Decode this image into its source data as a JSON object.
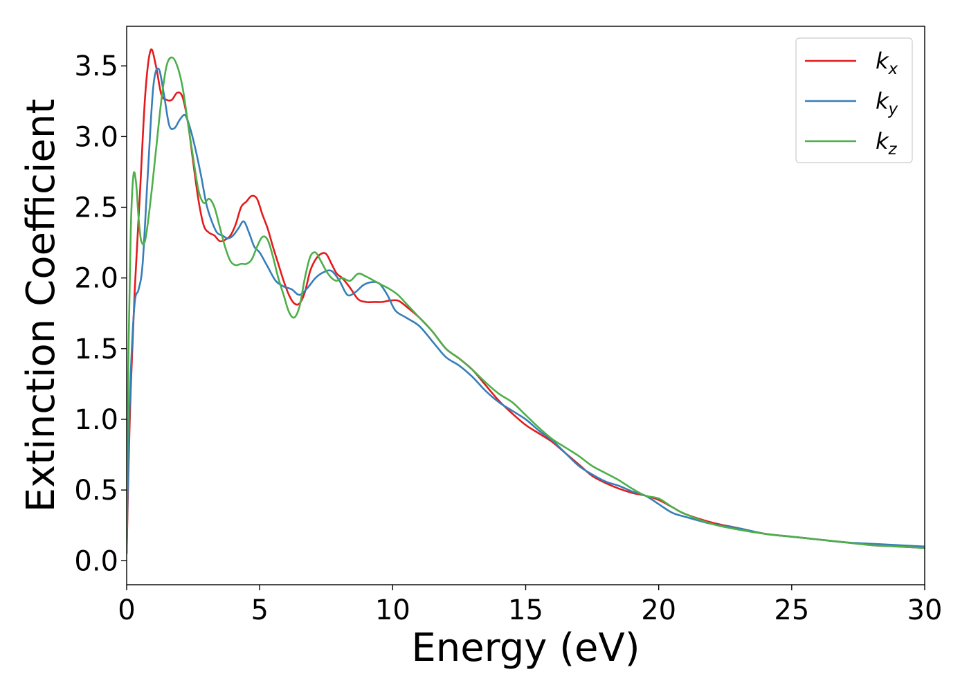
{
  "chart_data": {
    "type": "line",
    "title": "",
    "xlabel": "Energy (eV)",
    "ylabel": "Extinction Coefficient",
    "xlim": [
      0,
      30
    ],
    "ylim": [
      -0.17,
      3.78
    ],
    "xticks": [
      0,
      5,
      10,
      15,
      20,
      25,
      30
    ],
    "xtick_labels": [
      "0",
      "5",
      "10",
      "15",
      "20",
      "25",
      "30"
    ],
    "yticks": [
      0.0,
      0.5,
      1.0,
      1.5,
      2.0,
      2.5,
      3.0,
      3.5
    ],
    "ytick_labels": [
      "0.0",
      "0.5",
      "1.0",
      "1.5",
      "2.0",
      "2.5",
      "3.0",
      "3.5"
    ],
    "grid": false,
    "legend_position": "top-right",
    "series": [
      {
        "name": "k_x",
        "legend_base": "k",
        "legend_sub": "x",
        "color": "#e41a1c",
        "x": [
          0,
          0.05,
          0.15,
          0.3,
          0.5,
          0.7,
          0.9,
          1.1,
          1.3,
          1.5,
          1.7,
          1.9,
          2.1,
          2.3,
          2.5,
          2.7,
          2.9,
          3.1,
          3.3,
          3.5,
          3.7,
          3.9,
          4.1,
          4.3,
          4.5,
          4.7,
          4.9,
          5.1,
          5.3,
          5.5,
          5.7,
          5.9,
          6.1,
          6.3,
          6.5,
          6.7,
          6.9,
          7.1,
          7.3,
          7.5,
          7.7,
          7.9,
          8.1,
          8.4,
          8.7,
          9.0,
          9.3,
          9.6,
          9.9,
          10.2,
          10.5,
          11.0,
          11.5,
          12.0,
          12.5,
          13.0,
          13.5,
          14.0,
          14.5,
          15.0,
          15.5,
          16.0,
          16.5,
          17.0,
          17.5,
          18.0,
          18.5,
          19.0,
          19.5,
          20.0,
          20.5,
          21.0,
          22.0,
          23.0,
          24.0,
          25.0,
          26.0,
          27.0,
          28.0,
          29.0,
          30.0
        ],
        "y": [
          0.05,
          0.5,
          1.2,
          1.9,
          2.6,
          3.3,
          3.61,
          3.5,
          3.3,
          3.26,
          3.26,
          3.31,
          3.28,
          3.1,
          2.82,
          2.55,
          2.37,
          2.32,
          2.3,
          2.26,
          2.27,
          2.3,
          2.38,
          2.5,
          2.54,
          2.58,
          2.56,
          2.45,
          2.35,
          2.22,
          2.1,
          1.98,
          1.88,
          1.82,
          1.82,
          1.9,
          2.05,
          2.13,
          2.17,
          2.17,
          2.1,
          2.03,
          2.0,
          1.93,
          1.85,
          1.83,
          1.83,
          1.83,
          1.84,
          1.84,
          1.8,
          1.72,
          1.62,
          1.5,
          1.43,
          1.35,
          1.24,
          1.13,
          1.04,
          0.96,
          0.9,
          0.84,
          0.76,
          0.68,
          0.6,
          0.55,
          0.51,
          0.48,
          0.46,
          0.43,
          0.38,
          0.33,
          0.27,
          0.23,
          0.19,
          0.17,
          0.15,
          0.13,
          0.11,
          0.1,
          0.09
        ]
      },
      {
        "name": "k_y",
        "legend_base": "k",
        "legend_sub": "y",
        "color": "#377eb8",
        "x": [
          0,
          0.05,
          0.15,
          0.3,
          0.45,
          0.6,
          0.8,
          1.0,
          1.2,
          1.4,
          1.6,
          1.8,
          2.0,
          2.2,
          2.4,
          2.6,
          2.8,
          3.0,
          3.2,
          3.4,
          3.6,
          3.8,
          4.0,
          4.2,
          4.4,
          4.6,
          4.8,
          5.0,
          5.3,
          5.6,
          5.9,
          6.2,
          6.5,
          6.8,
          7.1,
          7.4,
          7.7,
          8.0,
          8.3,
          8.6,
          8.9,
          9.2,
          9.5,
          9.8,
          10.1,
          10.5,
          11.0,
          11.5,
          12.0,
          12.5,
          13.0,
          13.5,
          14.0,
          14.5,
          15.0,
          15.5,
          16.0,
          16.5,
          17.0,
          17.5,
          18.0,
          18.5,
          19.0,
          19.5,
          20.0,
          20.5,
          21.0,
          22.0,
          23.0,
          24.0,
          25.0,
          26.0,
          27.0,
          28.0,
          29.0,
          30.0
        ],
        "y": [
          0.05,
          0.6,
          1.3,
          1.82,
          1.92,
          2.1,
          2.75,
          3.35,
          3.48,
          3.3,
          3.08,
          3.06,
          3.12,
          3.15,
          3.05,
          2.9,
          2.72,
          2.52,
          2.4,
          2.32,
          2.3,
          2.28,
          2.3,
          2.35,
          2.4,
          2.32,
          2.22,
          2.18,
          2.08,
          1.98,
          1.94,
          1.92,
          1.88,
          1.93,
          2.0,
          2.04,
          2.05,
          1.98,
          1.88,
          1.9,
          1.95,
          1.97,
          1.96,
          1.88,
          1.77,
          1.72,
          1.66,
          1.55,
          1.44,
          1.38,
          1.3,
          1.2,
          1.12,
          1.06,
          1.0,
          0.92,
          0.85,
          0.76,
          0.67,
          0.61,
          0.56,
          0.53,
          0.49,
          0.46,
          0.4,
          0.34,
          0.31,
          0.26,
          0.23,
          0.19,
          0.17,
          0.15,
          0.13,
          0.12,
          0.11,
          0.1
        ]
      },
      {
        "name": "k_z",
        "legend_base": "k",
        "legend_sub": "z",
        "color": "#4daf4a",
        "x": [
          0,
          0.05,
          0.15,
          0.25,
          0.35,
          0.45,
          0.55,
          0.7,
          0.9,
          1.1,
          1.3,
          1.5,
          1.7,
          1.9,
          2.1,
          2.3,
          2.5,
          2.7,
          2.9,
          3.1,
          3.3,
          3.5,
          3.7,
          3.9,
          4.1,
          4.3,
          4.5,
          4.7,
          4.9,
          5.1,
          5.3,
          5.5,
          5.7,
          5.9,
          6.1,
          6.3,
          6.5,
          6.7,
          6.9,
          7.1,
          7.3,
          7.5,
          7.7,
          7.9,
          8.1,
          8.4,
          8.7,
          9.0,
          9.3,
          9.6,
          9.9,
          10.2,
          10.5,
          11.0,
          11.5,
          12.0,
          12.5,
          13.0,
          13.5,
          14.0,
          14.5,
          15.0,
          15.5,
          16.0,
          16.5,
          17.0,
          17.5,
          18.0,
          18.5,
          19.0,
          19.5,
          20.0,
          20.5,
          21.0,
          22.0,
          23.0,
          24.0,
          25.0,
          26.0,
          27.0,
          28.0,
          29.0,
          30.0
        ],
        "y": [
          0.05,
          1.2,
          2.3,
          2.72,
          2.68,
          2.42,
          2.26,
          2.27,
          2.55,
          2.9,
          3.25,
          3.5,
          3.56,
          3.5,
          3.35,
          3.1,
          2.85,
          2.62,
          2.53,
          2.56,
          2.5,
          2.36,
          2.22,
          2.12,
          2.09,
          2.1,
          2.1,
          2.13,
          2.22,
          2.29,
          2.27,
          2.15,
          2.0,
          1.88,
          1.76,
          1.72,
          1.8,
          2.0,
          2.15,
          2.18,
          2.12,
          2.05,
          2.0,
          1.98,
          2.0,
          1.98,
          2.03,
          2.01,
          1.98,
          1.95,
          1.92,
          1.88,
          1.82,
          1.72,
          1.62,
          1.5,
          1.43,
          1.35,
          1.26,
          1.18,
          1.12,
          1.03,
          0.94,
          0.86,
          0.8,
          0.74,
          0.67,
          0.62,
          0.57,
          0.51,
          0.46,
          0.44,
          0.38,
          0.33,
          0.26,
          0.22,
          0.19,
          0.17,
          0.15,
          0.13,
          0.11,
          0.1,
          0.09
        ]
      }
    ]
  }
}
